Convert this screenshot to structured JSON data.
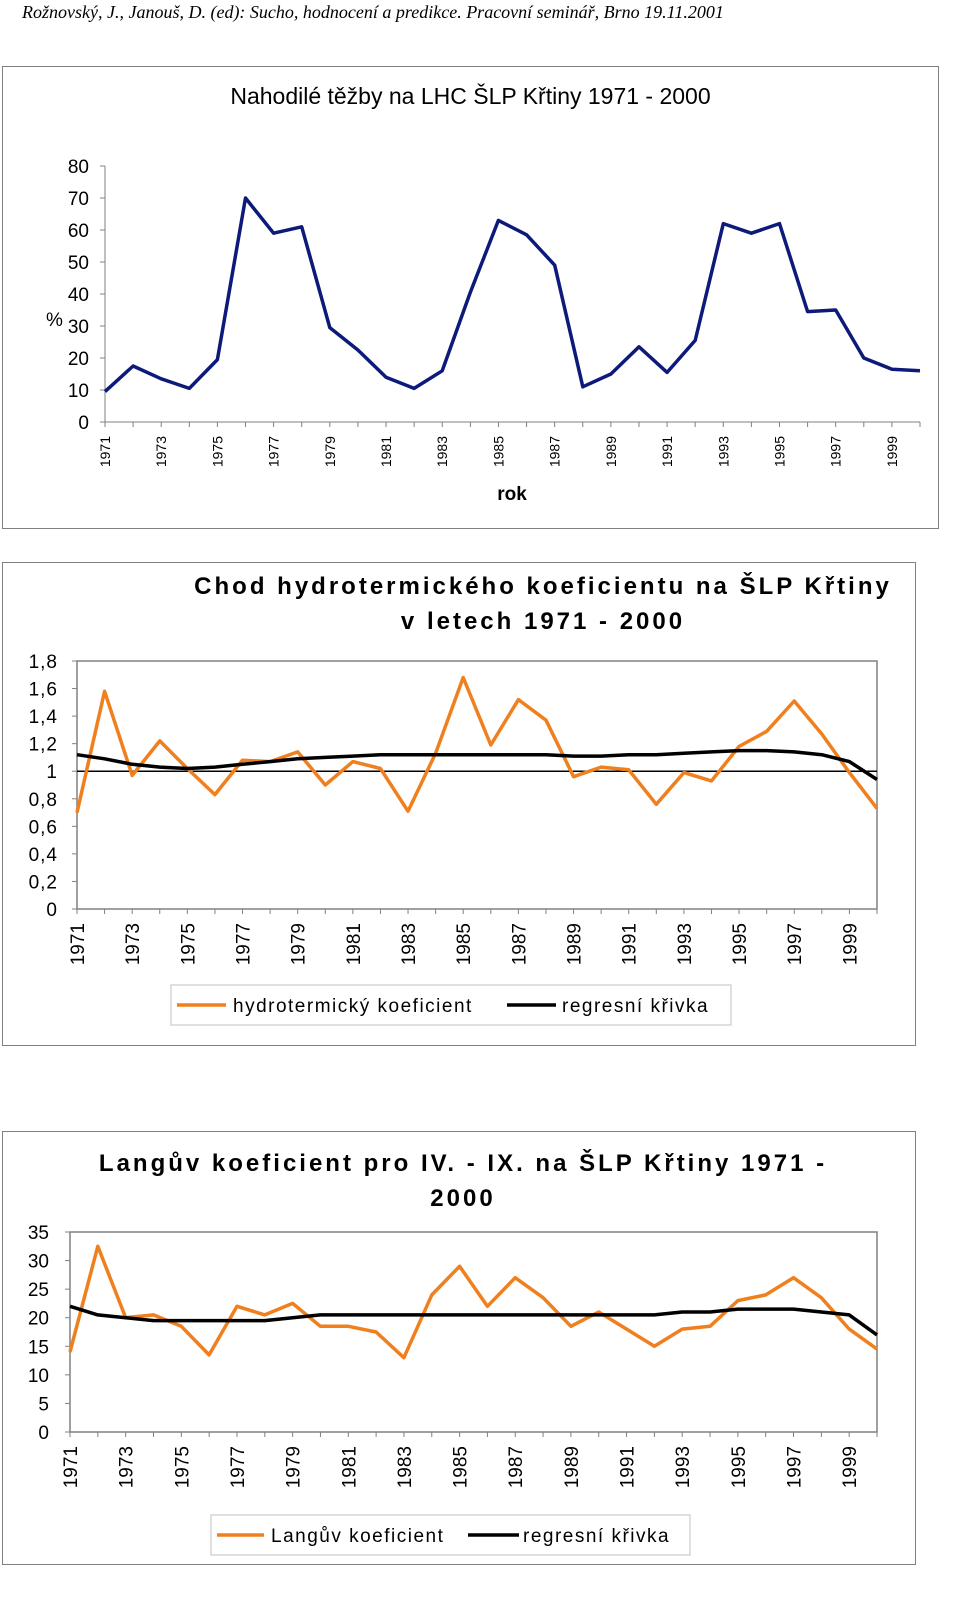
{
  "header": "Rožnovský, J., Janouš, D. (ed): Sucho, hodnocení a predikce. Pracovní seminář, Brno 19.11.2001",
  "chart_data": [
    {
      "type": "line",
      "title": "Nahodilé těžby na LHC ŠLP Křtiny 1971 - 2000",
      "xlabel": "rok",
      "ylabel": "%",
      "ylim": [
        0,
        80
      ],
      "yticks": [
        "0",
        "10",
        "20",
        "30",
        "40",
        "50",
        "60",
        "70",
        "80"
      ],
      "x": [
        1971,
        1972,
        1973,
        1974,
        1975,
        1976,
        1977,
        1978,
        1979,
        1980,
        1981,
        1982,
        1983,
        1984,
        1985,
        1986,
        1987,
        1988,
        1989,
        1990,
        1991,
        1992,
        1993,
        1994,
        1995,
        1996,
        1997,
        1998,
        1999,
        2000
      ],
      "xticks": [
        "1971",
        "1973",
        "1975",
        "1977",
        "1979",
        "1981",
        "1983",
        "1985",
        "1987",
        "1989",
        "1991",
        "1993",
        "1995",
        "1997",
        "1999"
      ],
      "series": [
        {
          "name": "Nahodilé těžby",
          "color": "#0d1a7a",
          "values": [
            9.5,
            17.5,
            13.5,
            10.5,
            19.5,
            70,
            59,
            61,
            29.5,
            22.5,
            14,
            10.5,
            16,
            40.5,
            63,
            58.5,
            49,
            11,
            15,
            23.5,
            15.5,
            25.5,
            62,
            59,
            62,
            34.5,
            35,
            20,
            16.5,
            16
          ]
        }
      ]
    },
    {
      "type": "line",
      "title": "Chod hydrotermického koeficientu na ŠLP Křtiny v letech 1971 - 2000",
      "title_lines": [
        "Chod hydrotermického koeficientu na ŠLP Křtiny",
        "v letech 1971 - 2000"
      ],
      "xlabel": "",
      "ylabel": "",
      "ylim": [
        0,
        1.8
      ],
      "yticks": [
        "0",
        "0,2",
        "0,4",
        "0,6",
        "0,8",
        "1",
        "1,2",
        "1,4",
        "1,6",
        "1,8"
      ],
      "reference_line": 1,
      "x": [
        1971,
        1972,
        1973,
        1974,
        1975,
        1976,
        1977,
        1978,
        1979,
        1980,
        1981,
        1982,
        1983,
        1984,
        1985,
        1986,
        1987,
        1988,
        1989,
        1990,
        1991,
        1992,
        1993,
        1994,
        1995,
        1996,
        1997,
        1998,
        1999,
        2000
      ],
      "xticks": [
        "1971",
        "1973",
        "1975",
        "1977",
        "1979",
        "1981",
        "1983",
        "1985",
        "1987",
        "1989",
        "1991",
        "1993",
        "1995",
        "1997",
        "1999"
      ],
      "legend": [
        "hydrotermický koeficient",
        "regresní křivka"
      ],
      "series": [
        {
          "name": "hydrotermický koeficient",
          "color": "#f07f1e",
          "values": [
            0.7,
            1.58,
            0.97,
            1.22,
            1.02,
            0.83,
            1.08,
            1.07,
            1.14,
            0.9,
            1.07,
            1.02,
            0.71,
            1.13,
            1.68,
            1.19,
            1.52,
            1.37,
            0.96,
            1.03,
            1.01,
            0.76,
            0.99,
            0.93,
            1.18,
            1.29,
            1.51,
            1.27,
            0.99,
            0.73
          ]
        },
        {
          "name": "regresní křivka",
          "color": "#000000",
          "values": [
            1.12,
            1.09,
            1.05,
            1.03,
            1.02,
            1.03,
            1.05,
            1.07,
            1.09,
            1.1,
            1.11,
            1.12,
            1.12,
            1.12,
            1.12,
            1.12,
            1.12,
            1.12,
            1.11,
            1.11,
            1.12,
            1.12,
            1.13,
            1.14,
            1.15,
            1.15,
            1.14,
            1.12,
            1.07,
            0.94
          ]
        }
      ]
    },
    {
      "type": "line",
      "title": "Langův koeficient pro IV. - IX. na ŠLP Křtiny 1971 - 2000",
      "title_lines": [
        "Langův koeficient pro IV. - IX. na ŠLP Křtiny 1971 -",
        "2000"
      ],
      "xlabel": "",
      "ylabel": "",
      "ylim": [
        0,
        35
      ],
      "yticks": [
        "0",
        "5",
        "10",
        "15",
        "20",
        "25",
        "30",
        "35"
      ],
      "x": [
        1971,
        1972,
        1973,
        1974,
        1975,
        1976,
        1977,
        1978,
        1979,
        1980,
        1981,
        1982,
        1983,
        1984,
        1985,
        1986,
        1987,
        1988,
        1989,
        1990,
        1991,
        1992,
        1993,
        1994,
        1995,
        1996,
        1997,
        1998,
        1999,
        2000
      ],
      "xticks": [
        "1971",
        "1973",
        "1975",
        "1977",
        "1979",
        "1981",
        "1983",
        "1985",
        "1987",
        "1989",
        "1991",
        "1993",
        "1995",
        "1997",
        "1999"
      ],
      "legend": [
        "Langův koeficient",
        "regresní křivka"
      ],
      "series": [
        {
          "name": "Langův koeficient",
          "color": "#f07f1e",
          "values": [
            14,
            32.5,
            20,
            20.5,
            18.5,
            13.5,
            22,
            20.5,
            22.5,
            18.5,
            18.5,
            17.5,
            13,
            24,
            29,
            22,
            27,
            23.5,
            18.5,
            21,
            18,
            15,
            18,
            18.5,
            23,
            24,
            27,
            23.5,
            18,
            14.5
          ]
        },
        {
          "name": "regresní křivka",
          "color": "#000000",
          "values": [
            22,
            20.5,
            20,
            19.5,
            19.5,
            19.5,
            19.5,
            19.5,
            20,
            20.5,
            20.5,
            20.5,
            20.5,
            20.5,
            20.5,
            20.5,
            20.5,
            20.5,
            20.5,
            20.5,
            20.5,
            20.5,
            21,
            21,
            21.5,
            21.5,
            21.5,
            21,
            20.5,
            17
          ]
        }
      ]
    }
  ]
}
